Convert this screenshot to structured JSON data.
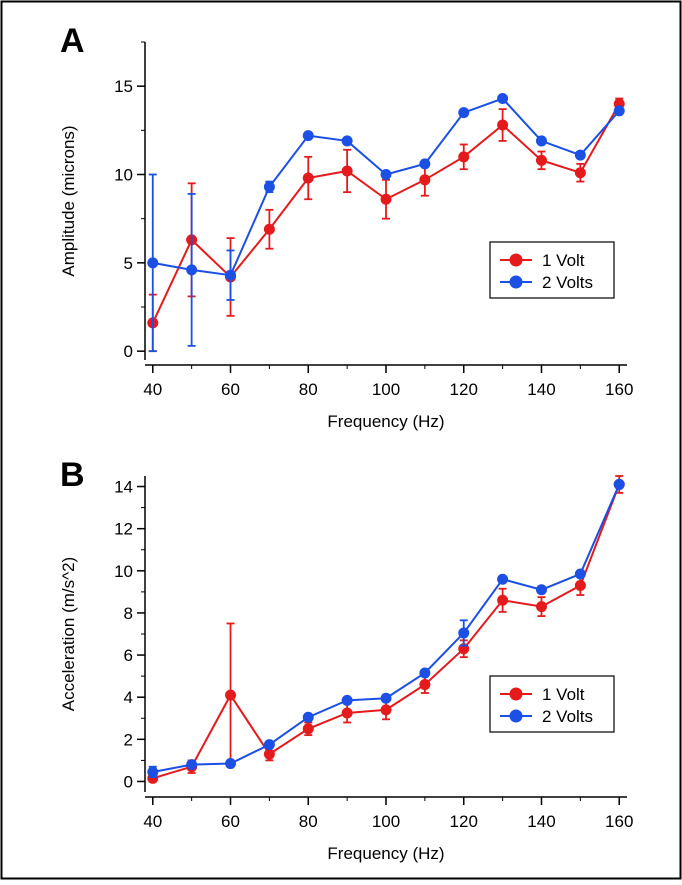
{
  "chart_data": [
    {
      "panel_label": "A",
      "type": "line",
      "xlabel": "Frequency (Hz)",
      "ylabel": "Amplitude (microns)",
      "xlim": [
        38,
        162
      ],
      "ylim": [
        -0.5,
        17.5
      ],
      "xticks": [
        40,
        60,
        80,
        100,
        120,
        140,
        160
      ],
      "yticks": [
        0,
        5,
        10,
        15
      ],
      "legend_position": "center-right",
      "x": [
        40,
        50,
        60,
        70,
        80,
        90,
        100,
        110,
        120,
        130,
        140,
        150,
        160
      ],
      "series": [
        {
          "name": "1 Volt",
          "color": "#e41a1c",
          "values": [
            1.6,
            6.3,
            4.2,
            6.9,
            9.8,
            10.2,
            8.6,
            9.7,
            11.0,
            12.8,
            10.8,
            10.1,
            14.0
          ],
          "errors": [
            1.6,
            3.2,
            2.2,
            1.1,
            1.2,
            1.2,
            1.1,
            0.9,
            0.7,
            0.9,
            0.5,
            0.5,
            0.3
          ]
        },
        {
          "name": "2 Volts",
          "color": "#1c4fe4",
          "values": [
            5.0,
            4.6,
            4.3,
            9.3,
            12.2,
            11.9,
            10.0,
            10.6,
            13.5,
            14.3,
            11.9,
            11.1,
            13.6
          ],
          "errors": [
            5.0,
            4.3,
            1.4,
            0.3,
            0.15,
            0.15,
            0.15,
            0.15,
            0.15,
            0.15,
            0.15,
            0.15,
            0.15
          ]
        }
      ]
    },
    {
      "panel_label": "B",
      "type": "line",
      "xlabel": "Frequency (Hz)",
      "ylabel": "Acceleration (m/s^2)",
      "xlim": [
        38,
        162
      ],
      "ylim": [
        -0.5,
        14.5
      ],
      "xticks": [
        40,
        60,
        80,
        100,
        120,
        140,
        160
      ],
      "yticks": [
        0,
        2,
        4,
        6,
        8,
        10,
        12,
        14
      ],
      "legend_position": "bottom-right",
      "x": [
        40,
        50,
        60,
        70,
        80,
        90,
        100,
        110,
        120,
        130,
        140,
        150,
        160
      ],
      "series": [
        {
          "name": "1 Volt",
          "color": "#e41a1c",
          "values": [
            0.15,
            0.7,
            4.1,
            1.3,
            2.5,
            3.25,
            3.4,
            4.6,
            6.3,
            8.6,
            8.3,
            9.3,
            14.1
          ],
          "errors": [
            0.15,
            0.3,
            3.4,
            0.3,
            0.3,
            0.45,
            0.45,
            0.4,
            0.4,
            0.55,
            0.45,
            0.45,
            0.4
          ]
        },
        {
          "name": "2 Volts",
          "color": "#1c4fe4",
          "values": [
            0.45,
            0.8,
            0.85,
            1.75,
            3.05,
            3.85,
            3.95,
            5.15,
            7.05,
            9.6,
            9.1,
            9.85,
            14.1
          ],
          "errors": [
            0.25,
            0.1,
            0.1,
            0.1,
            0.1,
            0.1,
            0.1,
            0.1,
            0.6,
            0.1,
            0.1,
            0.1,
            0.1
          ]
        }
      ]
    }
  ]
}
